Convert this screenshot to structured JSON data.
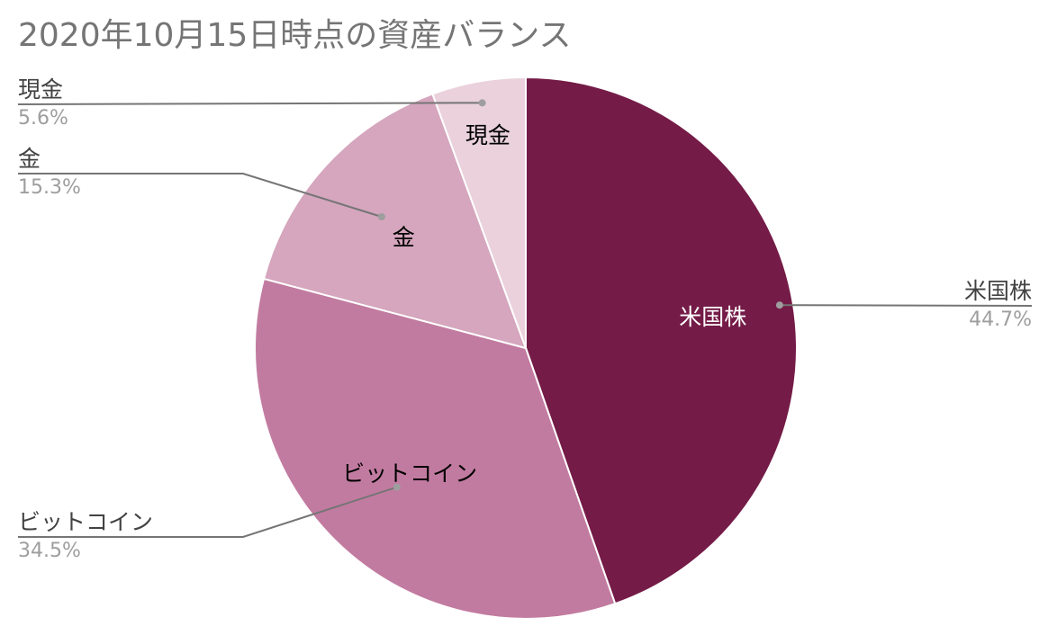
{
  "chart_data": {
    "type": "pie",
    "title": "2020年10月15日時点の資産バランス",
    "slices": [
      {
        "label": "米国株",
        "value": 44.7,
        "value_label": "44.7%",
        "color": "#741b47",
        "inner_text_color": "#ffffff"
      },
      {
        "label": "ビットコイン",
        "value": 34.5,
        "value_label": "34.5%",
        "color": "#c27ba0",
        "inner_text_color": "#000000"
      },
      {
        "label": "金",
        "value": 15.3,
        "value_label": "15.3%",
        "color": "#d5a6bd",
        "inner_text_color": "#000000"
      },
      {
        "label": "現金",
        "value": 5.6,
        "value_label": "5.6%",
        "color": "#ead1dc",
        "inner_text_color": "#000000"
      }
    ],
    "start_angle": "top, clockwise",
    "legend": "none (outside callout labels)"
  }
}
